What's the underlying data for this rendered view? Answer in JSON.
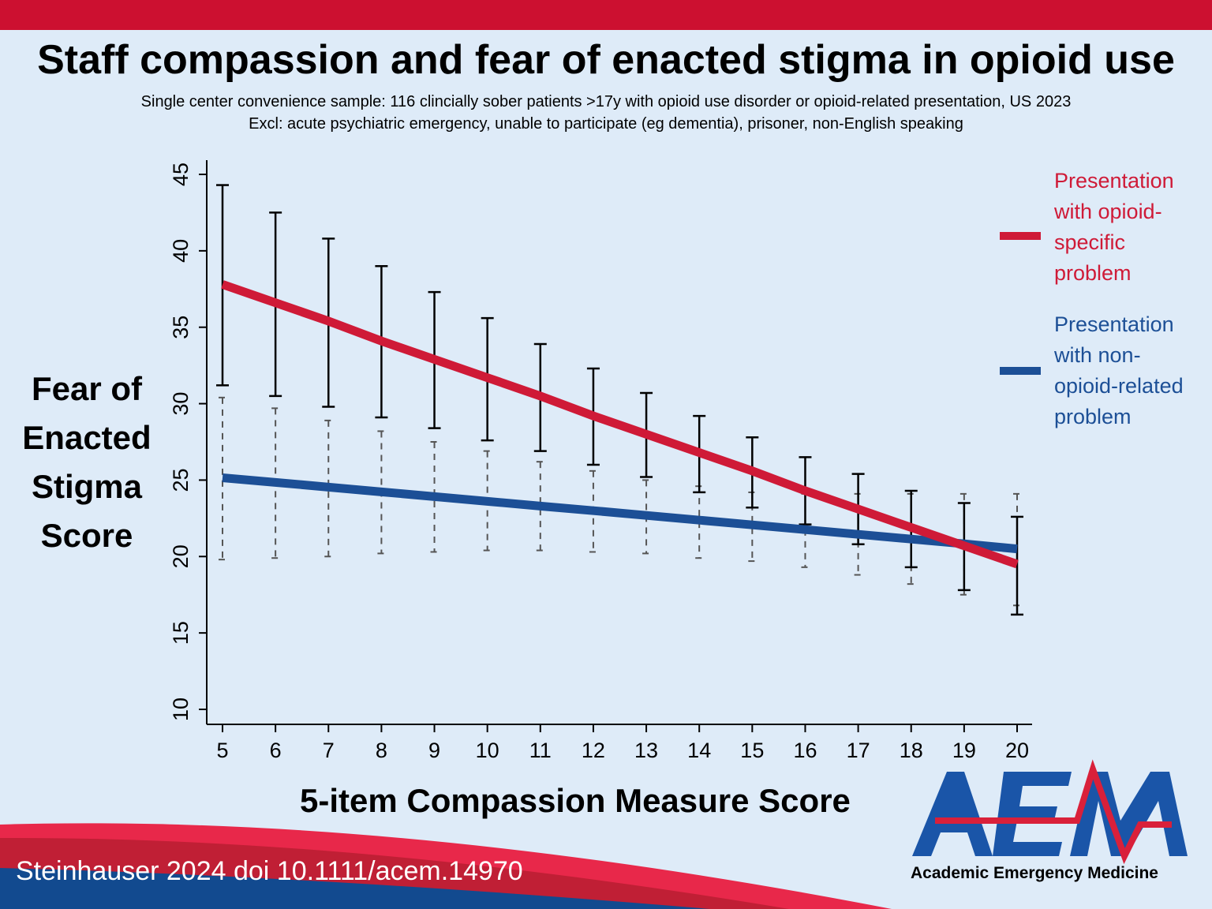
{
  "header": {
    "title": "Staff compassion and fear of enacted stigma in opioid use",
    "subtitle_1": "Single center convenience sample: 116 clincially sober patients >17y  with opioid use disorder or opioid-related presentation, US 2023",
    "subtitle_2": "Excl: acute psychiatric emergency, unable to participate (eg dementia), prisoner, non-English speaking"
  },
  "footer": {
    "citation": "Steinhauser 2024 doi 10.1111/acem.14970",
    "logo_text": "AEM",
    "logo_subtitle": "Academic Emergency Medicine"
  },
  "colors": {
    "red": "#cf1a37",
    "blue": "#1c4f96",
    "background": "#deebf8",
    "topbar": "#cc1030"
  },
  "chart_data": {
    "type": "line",
    "xlabel": "5-item Compassion Measure Score",
    "ylabel": "Fear of Enacted Stigma Score",
    "xlim": [
      5,
      20
    ],
    "ylim": [
      10,
      45
    ],
    "x": [
      5,
      6,
      7,
      8,
      9,
      10,
      11,
      12,
      13,
      14,
      15,
      16,
      17,
      18,
      19,
      20
    ],
    "yticks": [
      10,
      15,
      20,
      25,
      30,
      35,
      40,
      45
    ],
    "grid": false,
    "legend_position": "right",
    "series": [
      {
        "name": "Presentation with opioid-specific problem",
        "color": "#cf1a37",
        "errorbar_style": "solid black",
        "values": [
          37.8,
          36.6,
          35.4,
          34.1,
          32.9,
          31.7,
          30.5,
          29.2,
          28.0,
          26.8,
          25.6,
          24.3,
          23.1,
          21.9,
          20.7,
          19.5
        ],
        "ci_upper": [
          44.3,
          42.5,
          40.8,
          39.0,
          37.3,
          35.6,
          33.9,
          32.3,
          30.7,
          29.2,
          27.8,
          26.5,
          25.4,
          24.3,
          23.5,
          22.6
        ],
        "ci_lower": [
          31.2,
          30.5,
          29.8,
          29.1,
          28.4,
          27.6,
          26.9,
          26.0,
          25.2,
          24.2,
          23.2,
          22.1,
          20.8,
          19.3,
          17.8,
          16.2
        ]
      },
      {
        "name": "Presentation with non-opioid-related problem",
        "color": "#1c4f96",
        "errorbar_style": "dashed grey",
        "values": [
          25.15,
          24.85,
          24.54,
          24.23,
          23.92,
          23.61,
          23.3,
          23.0,
          22.69,
          22.38,
          22.07,
          21.76,
          21.45,
          21.14,
          20.83,
          20.5
        ],
        "ci_upper": [
          30.4,
          29.7,
          28.9,
          28.2,
          27.5,
          26.9,
          26.2,
          25.6,
          25.0,
          24.6,
          24.2,
          24.1,
          24.1,
          24.1,
          24.1,
          24.1
        ],
        "ci_lower": [
          19.8,
          19.9,
          20.0,
          20.2,
          20.3,
          20.4,
          20.4,
          20.3,
          20.2,
          19.9,
          19.7,
          19.3,
          18.8,
          18.2,
          17.5,
          16.8
        ]
      }
    ],
    "legend_lines": [
      [
        "Presentation",
        "with opioid-",
        "specific",
        "problem"
      ],
      [
        "Presentation",
        "with non-",
        "opioid-related",
        "problem"
      ]
    ],
    "ylabel_lines": [
      "Fear of",
      "Enacted",
      "Stigma",
      "Score"
    ]
  }
}
